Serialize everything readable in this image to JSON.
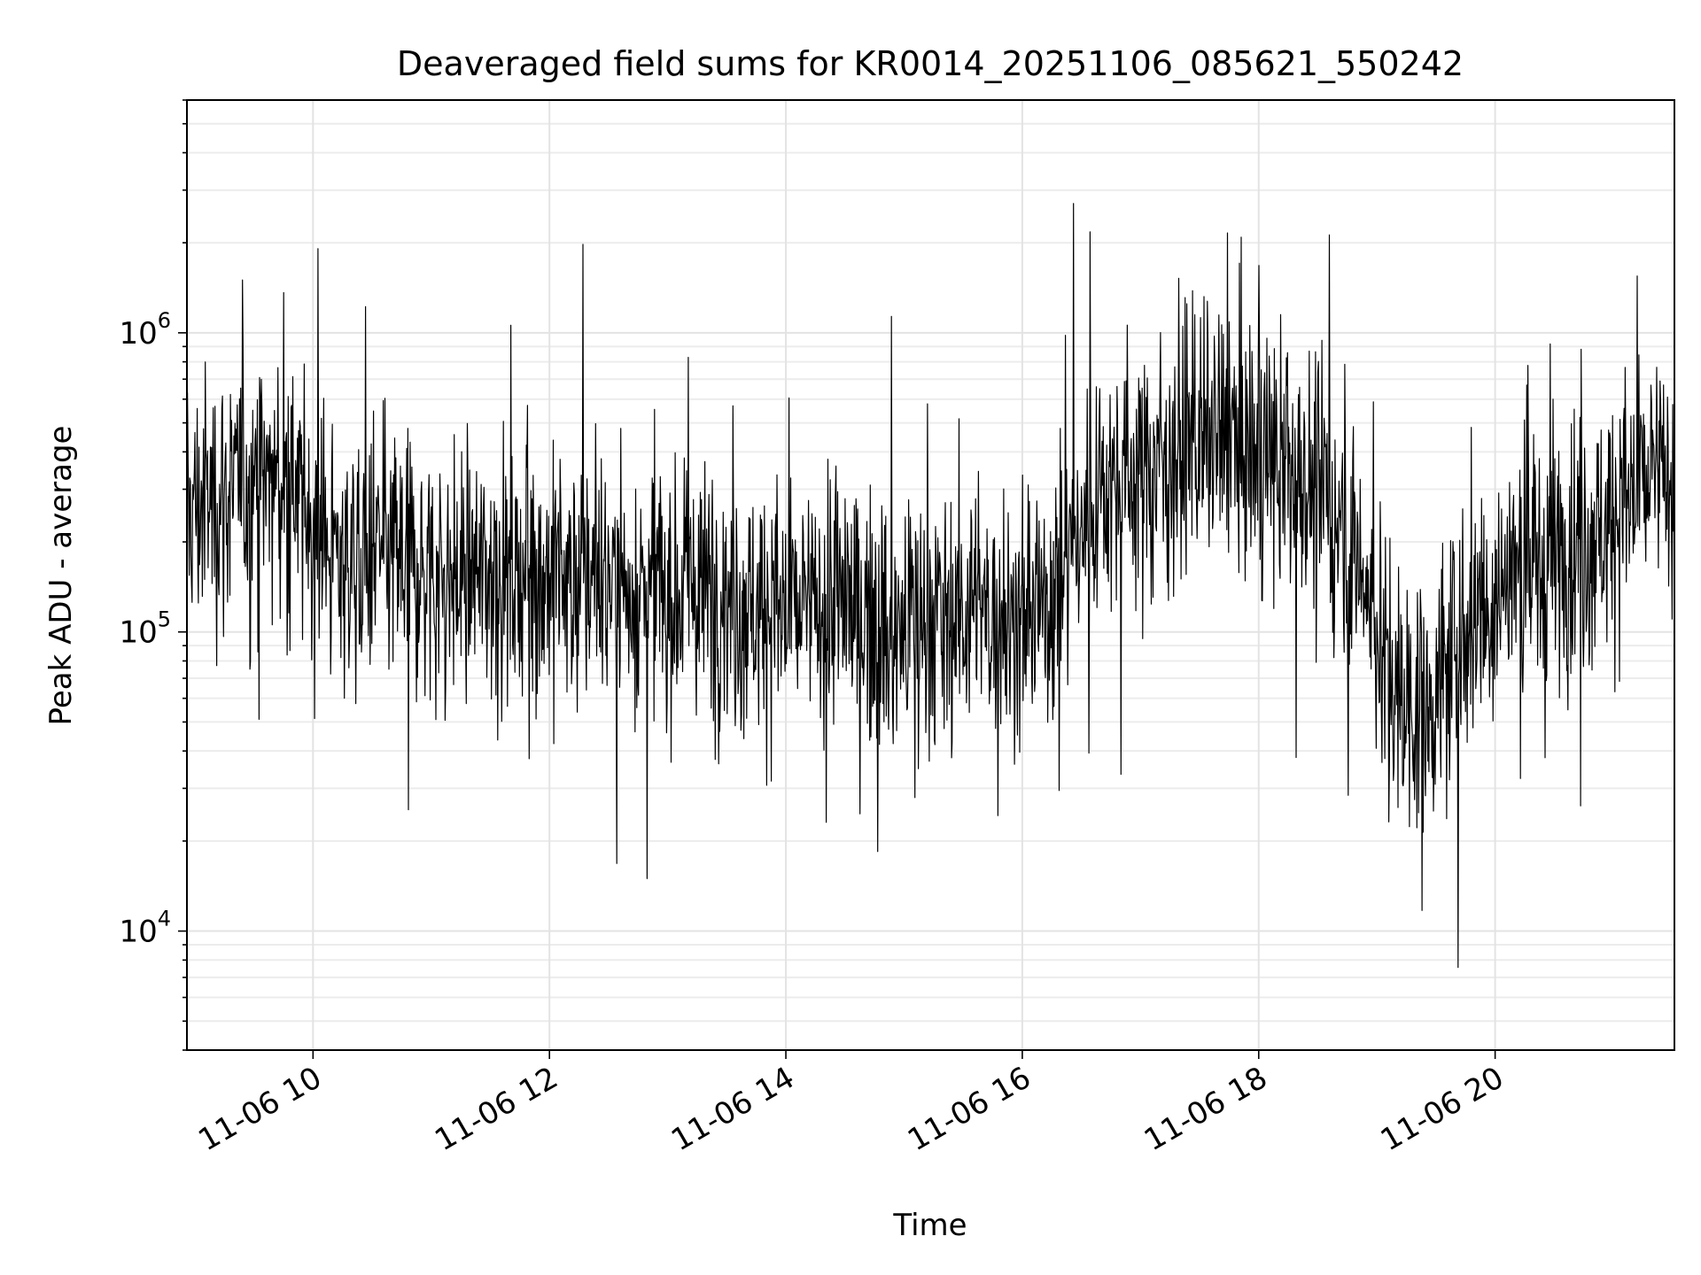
{
  "chart_data": {
    "type": "line",
    "title": "Deaveraged field sums for KR0014_20251106_085621_550242",
    "xlabel": "Time",
    "ylabel": "Peak ADU - average",
    "yscale": "log",
    "ylim": [
      4000,
      6000000
    ],
    "xlim": [
      "2025-11-06 08:56",
      "2025-11-06 21:31"
    ],
    "x_ticks": [
      "2025-11-06 10:00",
      "2025-11-06 12:00",
      "2025-11-06 14:00",
      "2025-11-06 16:00",
      "2025-11-06 18:00",
      "2025-11-06 20:00"
    ],
    "x_tick_labels": [
      "11-06 10",
      "11-06 12",
      "11-06 14",
      "11-06 16",
      "11-06 18",
      "11-06 20"
    ],
    "y_ticks": [
      10000,
      100000,
      1000000
    ],
    "y_tick_labels": [
      {
        "base": "10",
        "exp": "4"
      },
      {
        "base": "10",
        "exp": "5"
      },
      {
        "base": "10",
        "exp": "6"
      }
    ],
    "grid": true,
    "line_color": "#000000",
    "series": [
      {
        "x": [
          "2025-11-06 08:56",
          "2025-11-06 09:11",
          "2025-11-06 09:26",
          "2025-11-06 09:33",
          "2025-11-06 09:41",
          "2025-11-06 09:56",
          "2025-11-06 10:11",
          "2025-11-06 10:26",
          "2025-11-06 10:41",
          "2025-11-06 10:56",
          "2025-11-06 11:11",
          "2025-11-06 11:26",
          "2025-11-06 11:41",
          "2025-11-06 11:56",
          "2025-11-06 12:11",
          "2025-11-06 12:26",
          "2025-11-06 12:41",
          "2025-11-06 12:56",
          "2025-11-06 13:11",
          "2025-11-06 13:26",
          "2025-11-06 13:41",
          "2025-11-06 13:56",
          "2025-11-06 14:11",
          "2025-11-06 14:26",
          "2025-11-06 14:41",
          "2025-11-06 14:56",
          "2025-11-06 15:11",
          "2025-11-06 15:26",
          "2025-11-06 15:41",
          "2025-11-06 15:56",
          "2025-11-06 16:11",
          "2025-11-06 16:26",
          "2025-11-06 16:41",
          "2025-11-06 16:56",
          "2025-11-06 17:11",
          "2025-11-06 17:26",
          "2025-11-06 17:41",
          "2025-11-06 17:56",
          "2025-11-06 18:11",
          "2025-11-06 18:26",
          "2025-11-06 18:41",
          "2025-11-06 18:56",
          "2025-11-06 19:11",
          "2025-11-06 19:26",
          "2025-11-06 19:41",
          "2025-11-06 19:56",
          "2025-11-06 20:11",
          "2025-11-06 20:26",
          "2025-11-06 20:41",
          "2025-11-06 20:56",
          "2025-11-06 21:11",
          "2025-11-06 21:26",
          "2025-11-06 21:31"
        ],
        "y": [
          250000,
          280000,
          300000,
          330000,
          320000,
          250000,
          180000,
          170000,
          180000,
          160000,
          150000,
          160000,
          160000,
          150000,
          155000,
          150000,
          145000,
          140000,
          135000,
          140000,
          125000,
          120000,
          115000,
          130000,
          110000,
          100000,
          110000,
          120000,
          115000,
          110000,
          120000,
          200000,
          320000,
          330000,
          380000,
          420000,
          430000,
          400000,
          350000,
          300000,
          250000,
          130000,
          60000,
          55000,
          90000,
          130000,
          160000,
          170000,
          200000,
          230000,
          300000,
          330000,
          340000
        ]
      }
    ]
  }
}
